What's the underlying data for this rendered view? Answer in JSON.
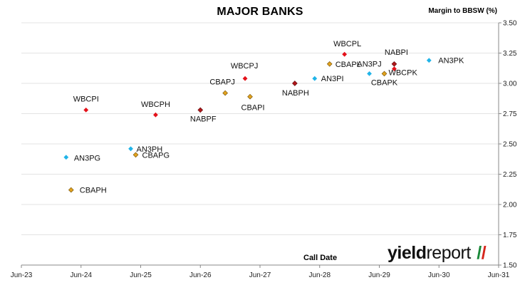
{
  "chart_data": {
    "type": "scatter",
    "title": "MAJOR BANKS",
    "ylabel": "Margin to BBSW (%)",
    "xlabel": "Call Date",
    "x_ticks": [
      "Jun-23",
      "Jun-24",
      "Jun-25",
      "Jun-26",
      "Jun-27",
      "Jun-28",
      "Jun-29",
      "Jun-30",
      "Jun-31"
    ],
    "x_range": [
      "Jun-23",
      "Jun-31"
    ],
    "y_ticks": [
      "1.50",
      "1.75",
      "2.00",
      "2.25",
      "2.50",
      "2.75",
      "3.00",
      "3.25",
      "3.50"
    ],
    "ylim": [
      1.5,
      3.5
    ],
    "y_axis_position": "right",
    "grid": "horizontal",
    "colors": {
      "WBC": "#e4111a",
      "CBA": "#e2a21e",
      "AN3": "#21b4e8",
      "NAB": "#b0161a"
    },
    "points": [
      {
        "label": "WBCPI",
        "x": "2024-07",
        "y": 2.78,
        "group": "WBC"
      },
      {
        "label": "AN3PG",
        "x": "2024-03",
        "y": 2.39,
        "group": "AN3"
      },
      {
        "label": "CBAPH",
        "x": "2024-04",
        "y": 2.12,
        "group": "CBA"
      },
      {
        "label": "AN3PH",
        "x": "2025-04",
        "y": 2.46,
        "group": "AN3"
      },
      {
        "label": "CBAPG",
        "x": "2025-05",
        "y": 2.41,
        "group": "CBA"
      },
      {
        "label": "WBCPH",
        "x": "2025-09",
        "y": 2.74,
        "group": "WBC"
      },
      {
        "label": "NABPF",
        "x": "2026-06",
        "y": 2.78,
        "group": "NAB"
      },
      {
        "label": "CBAPJ",
        "x": "2026-11",
        "y": 2.92,
        "group": "CBA"
      },
      {
        "label": "WBCPJ",
        "x": "2027-03",
        "y": 3.04,
        "group": "WBC"
      },
      {
        "label": "CBAPI",
        "x": "2027-04",
        "y": 2.89,
        "group": "CBA"
      },
      {
        "label": "NABPH",
        "x": "2028-01",
        "y": 3.0,
        "group": "NAB"
      },
      {
        "label": "AN3PI",
        "x": "2028-05",
        "y": 3.04,
        "group": "AN3"
      },
      {
        "label": "CBAPL",
        "x": "2028-08",
        "y": 3.16,
        "group": "CBA"
      },
      {
        "label": "WBCPL",
        "x": "2028-11",
        "y": 3.24,
        "group": "WBC"
      },
      {
        "label": "AN3PJ",
        "x": "2029-04",
        "y": 3.08,
        "group": "AN3"
      },
      {
        "label": "CBAPK",
        "x": "2029-07",
        "y": 3.08,
        "group": "CBA"
      },
      {
        "label": "NABPI",
        "x": "2029-09",
        "y": 3.16,
        "group": "NAB"
      },
      {
        "label": "WBCPK",
        "x": "2029-09",
        "y": 3.12,
        "group": "WBC"
      },
      {
        "label": "AN3PK",
        "x": "2030-04",
        "y": 3.19,
        "group": "AN3"
      }
    ]
  },
  "logo": {
    "word1": "yield",
    "word2": "report",
    "slash_left": "/",
    "slash_right": "/"
  }
}
